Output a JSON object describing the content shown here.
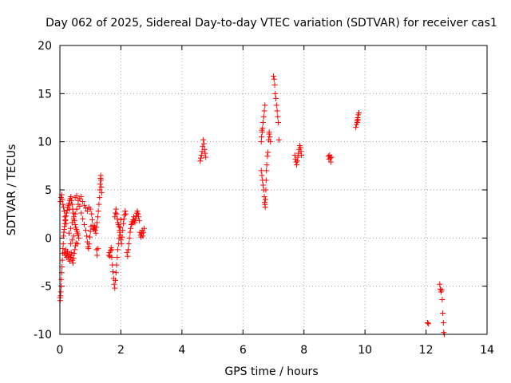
{
  "chart_data": {
    "type": "scatter",
    "title": "Day 062 of 2025, Sidereal Day-to-day VTEC variation (SDTVAR) for receiver cas1",
    "xlabel": "GPS time / hours",
    "ylabel": "SDTVAR / TECUs",
    "xlim": [
      0,
      14
    ],
    "ylim": [
      -10,
      20
    ],
    "xticks": [
      0,
      2,
      4,
      6,
      8,
      10,
      12,
      14
    ],
    "yticks": [
      -10,
      -5,
      0,
      5,
      10,
      15,
      20
    ],
    "grid": true,
    "marker": "+",
    "color": "#ff0000",
    "series": [
      {
        "name": "SDTVAR",
        "points": [
          [
            0.0,
            -6.2
          ],
          [
            0.01,
            -6.5
          ],
          [
            0.02,
            -6.0
          ],
          [
            0.03,
            -5.6
          ],
          [
            0.04,
            -5.0
          ],
          [
            0.05,
            -4.3
          ],
          [
            0.06,
            -3.6
          ],
          [
            0.07,
            -3.0
          ],
          [
            0.08,
            -2.3
          ],
          [
            0.09,
            -1.6
          ],
          [
            0.1,
            -1.1
          ],
          [
            0.11,
            -0.6
          ],
          [
            0.12,
            0.2
          ],
          [
            0.13,
            0.6
          ],
          [
            0.14,
            0.9
          ],
          [
            0.15,
            1.2
          ],
          [
            0.16,
            1.5
          ],
          [
            0.18,
            1.8
          ],
          [
            0.2,
            2.3
          ],
          [
            0.22,
            2.6
          ],
          [
            0.24,
            2.9
          ],
          [
            0.26,
            3.2
          ],
          [
            0.28,
            3.4
          ],
          [
            0.3,
            3.6
          ],
          [
            0.32,
            3.9
          ],
          [
            0.34,
            4.1
          ],
          [
            0.36,
            4.3
          ],
          [
            0.38,
            3.9
          ],
          [
            0.4,
            3.5
          ],
          [
            0.42,
            3.0
          ],
          [
            0.44,
            2.6
          ],
          [
            0.46,
            2.2
          ],
          [
            0.48,
            1.8
          ],
          [
            0.5,
            1.4
          ],
          [
            0.52,
            1.1
          ],
          [
            0.54,
            0.9
          ],
          [
            0.56,
            0.7
          ],
          [
            0.58,
            0.5
          ],
          [
            0.6,
            0.3
          ],
          [
            0.62,
            0.0
          ],
          [
            0.02,
            3.8
          ],
          [
            0.04,
            4.2
          ],
          [
            0.06,
            4.5
          ],
          [
            0.08,
            4.0
          ],
          [
            0.1,
            3.5
          ],
          [
            0.12,
            3.2
          ],
          [
            0.14,
            2.8
          ],
          [
            0.16,
            2.2
          ],
          [
            0.18,
            1.9
          ],
          [
            0.2,
            1.5
          ],
          [
            0.15,
            -1.5
          ],
          [
            0.17,
            -1.8
          ],
          [
            0.19,
            -1.2
          ],
          [
            0.21,
            -1.6
          ],
          [
            0.23,
            -2.0
          ],
          [
            0.25,
            -1.4
          ],
          [
            0.27,
            -1.9
          ],
          [
            0.29,
            -2.2
          ],
          [
            0.31,
            -1.7
          ],
          [
            0.33,
            -2.4
          ],
          [
            0.35,
            -2.0
          ],
          [
            0.37,
            -1.5
          ],
          [
            0.39,
            -1.8
          ],
          [
            0.41,
            -2.3
          ],
          [
            0.43,
            -2.6
          ],
          [
            0.45,
            -2.1
          ],
          [
            0.47,
            -1.6
          ],
          [
            0.49,
            -1.2
          ],
          [
            0.51,
            -0.8
          ],
          [
            0.53,
            -0.5
          ],
          [
            0.3,
            0.5
          ],
          [
            0.35,
            1.0
          ],
          [
            0.4,
            1.6
          ],
          [
            0.45,
            2.0
          ],
          [
            0.5,
            2.5
          ],
          [
            0.55,
            3.0
          ],
          [
            0.6,
            3.5
          ],
          [
            0.65,
            4.1
          ],
          [
            0.7,
            4.3
          ],
          [
            0.75,
            3.8
          ],
          [
            0.5,
            4.2
          ],
          [
            0.55,
            4.4
          ],
          [
            0.6,
            3.9
          ],
          [
            0.65,
            3.3
          ],
          [
            0.7,
            2.6
          ],
          [
            0.75,
            2.0
          ],
          [
            0.8,
            1.4
          ],
          [
            0.85,
            0.8
          ],
          [
            0.88,
            0.2
          ],
          [
            0.9,
            -0.4
          ],
          [
            0.92,
            -0.9
          ],
          [
            0.94,
            -1.1
          ],
          [
            0.96,
            -0.6
          ],
          [
            0.98,
            0.1
          ],
          [
            1.0,
            0.7
          ],
          [
            1.02,
            1.2
          ],
          [
            0.8,
            3.4
          ],
          [
            0.85,
            3.1
          ],
          [
            0.9,
            2.8
          ],
          [
            0.95,
            3.2
          ],
          [
            1.0,
            3.0
          ],
          [
            1.04,
            2.5
          ],
          [
            1.06,
            1.9
          ],
          [
            1.08,
            1.3
          ],
          [
            1.1,
            1.0
          ],
          [
            1.12,
            0.9
          ],
          [
            1.14,
            1.2
          ],
          [
            1.16,
            0.8
          ],
          [
            1.18,
            0.5
          ],
          [
            1.2,
            1.1
          ],
          [
            1.22,
            1.6
          ],
          [
            1.24,
            2.2
          ],
          [
            1.26,
            2.8
          ],
          [
            1.28,
            3.5
          ],
          [
            1.3,
            4.2
          ],
          [
            1.31,
            5.0
          ],
          [
            1.32,
            5.6
          ],
          [
            1.33,
            6.2
          ],
          [
            1.34,
            6.5
          ],
          [
            1.35,
            6.0
          ],
          [
            1.36,
            5.3
          ],
          [
            1.37,
            4.7
          ],
          [
            1.2,
            -1.2
          ],
          [
            1.22,
            -1.8
          ],
          [
            1.25,
            -1.1
          ],
          [
            0.58,
            -0.6
          ],
          [
            0.45,
            0.2
          ],
          [
            0.4,
            -0.2
          ],
          [
            0.35,
            -0.6
          ],
          [
            0.32,
            3.0
          ],
          [
            1.6,
            -1.8
          ],
          [
            1.62,
            -1.5
          ],
          [
            1.64,
            -1.9
          ],
          [
            1.66,
            -1.3
          ],
          [
            1.68,
            -1.0
          ],
          [
            1.7,
            -2.0
          ],
          [
            1.72,
            -2.8
          ],
          [
            1.74,
            -3.5
          ],
          [
            1.76,
            -4.2
          ],
          [
            1.78,
            -4.8
          ],
          [
            1.8,
            -5.2
          ],
          [
            1.82,
            -4.4
          ],
          [
            1.84,
            -3.6
          ],
          [
            1.86,
            -2.8
          ],
          [
            1.88,
            -2.0
          ],
          [
            1.9,
            -1.2
          ],
          [
            1.92,
            -0.6
          ],
          [
            1.94,
            0.0
          ],
          [
            1.96,
            0.6
          ],
          [
            1.98,
            1.1
          ],
          [
            1.8,
            2.2
          ],
          [
            1.82,
            2.6
          ],
          [
            1.84,
            3.0
          ],
          [
            1.86,
            2.5
          ],
          [
            1.88,
            2.0
          ],
          [
            1.9,
            1.6
          ],
          [
            1.92,
            1.4
          ],
          [
            1.94,
            1.2
          ],
          [
            1.96,
            0.8
          ],
          [
            1.98,
            0.3
          ],
          [
            2.0,
            -0.2
          ],
          [
            2.02,
            -0.6
          ],
          [
            2.04,
            0.1
          ],
          [
            2.06,
            0.8
          ],
          [
            2.08,
            1.5
          ],
          [
            2.1,
            2.0
          ],
          [
            2.12,
            2.4
          ],
          [
            2.14,
            2.8
          ],
          [
            2.16,
            2.5
          ],
          [
            1.7,
            -1.2
          ],
          [
            2.2,
            -1.5
          ],
          [
            2.22,
            -1.9
          ],
          [
            2.24,
            -1.2
          ],
          [
            2.26,
            -0.6
          ],
          [
            2.28,
            0.0
          ],
          [
            2.3,
            0.6
          ],
          [
            2.32,
            1.0
          ],
          [
            2.34,
            1.4
          ],
          [
            2.36,
            1.7
          ],
          [
            2.38,
            1.5
          ],
          [
            2.4,
            1.9
          ],
          [
            2.42,
            2.2
          ],
          [
            2.44,
            1.8
          ],
          [
            2.46,
            1.6
          ],
          [
            2.48,
            2.0
          ],
          [
            2.5,
            2.3
          ],
          [
            2.52,
            2.6
          ],
          [
            2.54,
            2.8
          ],
          [
            2.56,
            2.5
          ],
          [
            2.58,
            2.2
          ],
          [
            2.6,
            1.8
          ],
          [
            2.62,
            0.6
          ],
          [
            2.64,
            0.3
          ],
          [
            2.66,
            0.1
          ],
          [
            2.68,
            0.5
          ],
          [
            2.7,
            0.8
          ],
          [
            2.72,
            0.2
          ],
          [
            2.74,
            0.6
          ],
          [
            2.76,
            1.0
          ],
          [
            2.0,
            1.9
          ],
          [
            4.6,
            8.0
          ],
          [
            4.62,
            8.3
          ],
          [
            4.64,
            8.6
          ],
          [
            4.66,
            9.0
          ],
          [
            4.68,
            9.5
          ],
          [
            4.7,
            10.2
          ],
          [
            4.72,
            9.8
          ],
          [
            4.74,
            9.2
          ],
          [
            4.76,
            8.8
          ],
          [
            4.78,
            8.4
          ],
          [
            6.6,
            10.0
          ],
          [
            6.61,
            10.5
          ],
          [
            6.62,
            11.2
          ],
          [
            6.63,
            11.0
          ],
          [
            6.64,
            11.4
          ],
          [
            6.66,
            12.0
          ],
          [
            6.68,
            12.6
          ],
          [
            6.7,
            13.2
          ],
          [
            6.72,
            13.8
          ],
          [
            6.6,
            7.0
          ],
          [
            6.62,
            6.5
          ],
          [
            6.64,
            6.0
          ],
          [
            6.66,
            5.5
          ],
          [
            6.68,
            5.0
          ],
          [
            6.7,
            4.3
          ],
          [
            6.71,
            3.7
          ],
          [
            6.72,
            3.5
          ],
          [
            6.73,
            3.2
          ],
          [
            6.74,
            4.0
          ],
          [
            6.75,
            5.0
          ],
          [
            6.76,
            6.0
          ],
          [
            6.77,
            7.0
          ],
          [
            6.78,
            7.6
          ],
          [
            6.8,
            8.5
          ],
          [
            6.82,
            8.9
          ],
          [
            6.84,
            10.2
          ],
          [
            6.86,
            10.8
          ],
          [
            6.88,
            10.5
          ],
          [
            6.9,
            10.0
          ],
          [
            6.86,
            11.0
          ],
          [
            7.0,
            16.8
          ],
          [
            7.02,
            16.5
          ],
          [
            7.04,
            15.9
          ],
          [
            7.06,
            15.0
          ],
          [
            7.08,
            14.5
          ],
          [
            7.1,
            13.8
          ],
          [
            7.12,
            13.2
          ],
          [
            7.14,
            12.6
          ],
          [
            7.16,
            12.0
          ],
          [
            7.18,
            10.2
          ],
          [
            7.7,
            8.6
          ],
          [
            7.72,
            8.2
          ],
          [
            7.74,
            7.9
          ],
          [
            7.76,
            7.6
          ],
          [
            7.78,
            8.0
          ],
          [
            7.8,
            8.4
          ],
          [
            7.82,
            8.8
          ],
          [
            7.84,
            9.2
          ],
          [
            7.86,
            9.6
          ],
          [
            7.88,
            9.4
          ],
          [
            7.9,
            9.0
          ],
          [
            7.92,
            8.6
          ],
          [
            8.8,
            8.5
          ],
          [
            8.82,
            8.2
          ],
          [
            8.84,
            8.6
          ],
          [
            8.86,
            8.3
          ],
          [
            8.88,
            7.9
          ],
          [
            8.9,
            8.4
          ],
          [
            9.7,
            11.5
          ],
          [
            9.72,
            11.8
          ],
          [
            9.74,
            12.2
          ],
          [
            9.76,
            12.5
          ],
          [
            9.78,
            12.8
          ],
          [
            9.8,
            13.0
          ],
          [
            9.75,
            12.0
          ],
          [
            9.77,
            12.3
          ],
          [
            12.05,
            -8.8
          ],
          [
            12.08,
            -8.9
          ],
          [
            12.45,
            -4.8
          ],
          [
            12.47,
            -5.3
          ],
          [
            12.49,
            -5.6
          ],
          [
            12.51,
            -5.4
          ],
          [
            12.53,
            -6.4
          ],
          [
            12.55,
            -7.8
          ],
          [
            12.57,
            -8.8
          ],
          [
            12.58,
            -9.8
          ],
          [
            12.6,
            -10.0
          ]
        ]
      }
    ]
  }
}
